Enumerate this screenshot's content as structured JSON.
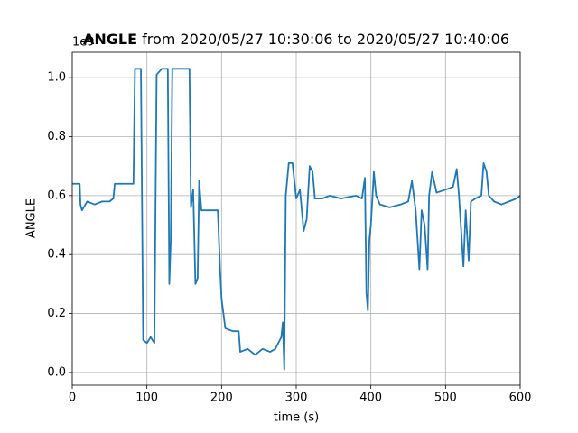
{
  "chart_data": {
    "type": "line",
    "title": {
      "bold": "ANGLE",
      "rest": "from 2020/05/27 10:30:06 to 2020/05/27 10:40:06"
    },
    "y_offset_label": "1e9",
    "x_label": "time (s)",
    "y_label": "ANGLE",
    "x": [
      0,
      10,
      11,
      13,
      20,
      30,
      40,
      50,
      55,
      57,
      70,
      82,
      84,
      92,
      95,
      100,
      105,
      110,
      113,
      120,
      128,
      130,
      132,
      134,
      145,
      157,
      159,
      162,
      165,
      168,
      170,
      173,
      185,
      195,
      198,
      200,
      205,
      215,
      223,
      225,
      235,
      245,
      255,
      265,
      272,
      280,
      282,
      284,
      286,
      290,
      295,
      300,
      305,
      310,
      314,
      318,
      322,
      325,
      335,
      345,
      360,
      380,
      388,
      392,
      394,
      396,
      398,
      400,
      404,
      407,
      412,
      425,
      440,
      450,
      455,
      460,
      465,
      468,
      472,
      476,
      478,
      482,
      488,
      500,
      510,
      515,
      518,
      524,
      527,
      531,
      534,
      540,
      548,
      551,
      555,
      558,
      565,
      575,
      585,
      595,
      600
    ],
    "series": [
      {
        "color": "#1f77b4",
        "values": [
          0.64,
          0.64,
          0.57,
          0.55,
          0.58,
          0.57,
          0.58,
          0.58,
          0.59,
          0.64,
          0.64,
          0.64,
          1.03,
          1.03,
          0.11,
          0.1,
          0.12,
          0.1,
          1.01,
          1.03,
          1.03,
          0.3,
          0.45,
          1.03,
          1.03,
          1.03,
          0.56,
          0.62,
          0.3,
          0.32,
          0.65,
          0.55,
          0.55,
          0.55,
          0.35,
          0.25,
          0.15,
          0.14,
          0.14,
          0.07,
          0.08,
          0.06,
          0.08,
          0.07,
          0.08,
          0.12,
          0.17,
          0.01,
          0.6,
          0.71,
          0.71,
          0.59,
          0.62,
          0.48,
          0.52,
          0.7,
          0.68,
          0.59,
          0.59,
          0.6,
          0.59,
          0.6,
          0.59,
          0.66,
          0.27,
          0.21,
          0.45,
          0.5,
          0.68,
          0.6,
          0.57,
          0.56,
          0.57,
          0.58,
          0.65,
          0.55,
          0.35,
          0.55,
          0.5,
          0.35,
          0.6,
          0.68,
          0.61,
          0.62,
          0.63,
          0.69,
          0.6,
          0.36,
          0.55,
          0.38,
          0.58,
          0.59,
          0.6,
          0.71,
          0.68,
          0.6,
          0.58,
          0.57,
          0.58,
          0.59,
          0.6
        ]
      }
    ],
    "xlim": [
      0,
      600
    ],
    "xticks": [
      0,
      100,
      200,
      300,
      400,
      500,
      600
    ],
    "ylim": [
      -0.043,
      1.086
    ],
    "yticks": [
      {
        "value": 0,
        "label": "0.0"
      },
      0.2,
      0.4,
      0.6,
      0.8,
      {
        "value": 1,
        "label": "1.0"
      }
    ],
    "grid": true
  }
}
